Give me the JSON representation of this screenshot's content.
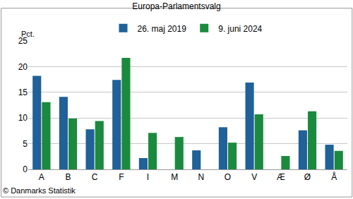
{
  "chart_data": {
    "type": "bar",
    "title": "Europa-Parlamentsvalg",
    "ylabel": "Pct.",
    "source": "© Danmarks Statistik",
    "categories": [
      "A",
      "B",
      "C",
      "F",
      "I",
      "M",
      "N",
      "O",
      "V",
      "Æ",
      "Ø",
      "Å"
    ],
    "series": [
      {
        "name": "26. maj 2019",
        "color": "#1f6198",
        "values": [
          18.2,
          14.1,
          7.8,
          17.4,
          2.2,
          null,
          3.7,
          8.2,
          16.9,
          null,
          7.6,
          4.8
        ]
      },
      {
        "name": "9. juni 2024",
        "color": "#1b8a3e",
        "values": [
          13.1,
          9.9,
          9.4,
          21.7,
          7.1,
          6.3,
          null,
          5.2,
          10.7,
          2.6,
          11.3,
          3.6
        ]
      }
    ],
    "ylim": [
      0,
      25
    ],
    "yticks": [
      0,
      5,
      10,
      15,
      20,
      25
    ],
    "grid": true,
    "legend": "top"
  }
}
